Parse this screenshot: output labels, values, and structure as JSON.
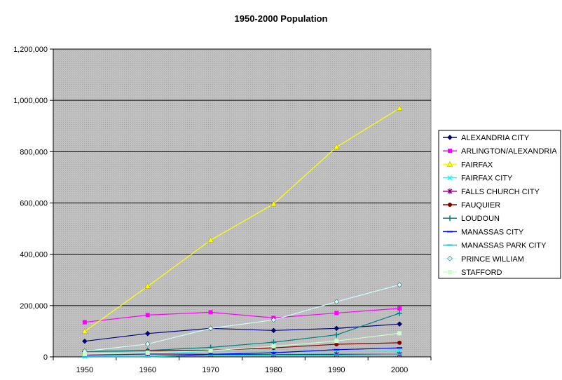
{
  "chart_data": {
    "type": "line",
    "title": "1950-2000 Population",
    "xlabel": "",
    "ylabel": "",
    "categories": [
      "1950",
      "1960",
      "1970",
      "1980",
      "1990",
      "2000"
    ],
    "ylim": [
      0,
      1200000
    ],
    "yticks": [
      0,
      200000,
      400000,
      600000,
      800000,
      1000000,
      1200000
    ],
    "ytick_labels": [
      "0",
      "200,000",
      "400,000",
      "600,000",
      "800,000",
      "1,000,000",
      "1,200,000"
    ],
    "grid": true,
    "legend_position": "right",
    "plot_background": "#c0c0c0",
    "series": [
      {
        "name": "ALEXANDRIA CITY",
        "color": "#000080",
        "marker": "diamond",
        "values": [
          61000,
          91000,
          111000,
          103000,
          111000,
          128000
        ]
      },
      {
        "name": "ARLINGTON/ALEXANDRIA",
        "color": "#ff00ff",
        "marker": "square",
        "values": [
          135000,
          163000,
          174000,
          152000,
          171000,
          189000
        ]
      },
      {
        "name": "FAIRFAX",
        "color": "#ffff00",
        "marker": "triangle",
        "values": [
          99000,
          275000,
          455000,
          596000,
          818000,
          969000
        ]
      },
      {
        "name": "FAIRFAX CITY",
        "color": "#00ffff",
        "marker": "x",
        "values": [
          2000,
          13000,
          21000,
          20000,
          20000,
          22000
        ]
      },
      {
        "name": "FALLS CHURCH CITY",
        "color": "#800080",
        "marker": "star",
        "values": [
          7000,
          11000,
          10000,
          9000,
          10000,
          10000
        ]
      },
      {
        "name": "FAUQUIER",
        "color": "#800000",
        "marker": "circle",
        "values": [
          21000,
          24000,
          26000,
          35000,
          49000,
          55000
        ]
      },
      {
        "name": "LOUDOUN",
        "color": "#008080",
        "marker": "plus",
        "values": [
          21000,
          25000,
          37000,
          57000,
          86000,
          170000
        ]
      },
      {
        "name": "MANASSAS CITY",
        "color": "#0000ff",
        "marker": "dash",
        "values": [
          0,
          0,
          10000,
          16000,
          28000,
          35000
        ]
      },
      {
        "name": "MANASSAS PARK CITY",
        "color": "#00ced1",
        "marker": "dash",
        "values": [
          0,
          0,
          6000,
          7000,
          7000,
          10000
        ]
      },
      {
        "name": "PRINCE WILLIAM",
        "color": "#ccffff",
        "marker": "diamond",
        "values": [
          22000,
          50000,
          111000,
          144000,
          215000,
          281000
        ]
      },
      {
        "name": "STAFFORD",
        "color": "#ccffcc",
        "marker": "square",
        "values": [
          11000,
          16000,
          24000,
          41000,
          62000,
          92000
        ]
      }
    ]
  }
}
